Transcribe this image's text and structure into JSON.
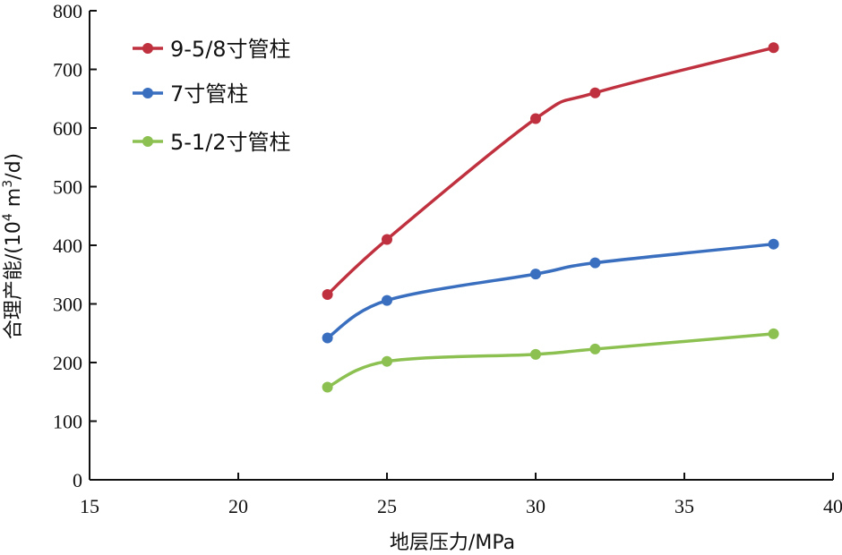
{
  "chart_data": {
    "type": "line",
    "xlabel": "地层压力/MPa",
    "ylabel_prefix": "合理产能/(10",
    "ylabel_sup1": "4",
    "ylabel_mid": " m",
    "ylabel_sup2": "3",
    "ylabel_suffix": "/d)",
    "xlim": [
      15,
      40
    ],
    "ylim": [
      0,
      800
    ],
    "x_ticks": [
      15,
      20,
      25,
      30,
      35,
      40
    ],
    "y_ticks": [
      0,
      100,
      200,
      300,
      400,
      500,
      600,
      700,
      800
    ],
    "grid": false,
    "legend_position": "top-left",
    "x": [
      23,
      25,
      30,
      32,
      38
    ],
    "series": [
      {
        "name": "9-5/8寸管柱",
        "color": "#c0313f",
        "values": [
          316,
          410,
          616,
          660,
          737
        ]
      },
      {
        "name": "7寸管柱",
        "color": "#3a6fbf",
        "values": [
          242,
          306,
          351,
          370,
          402
        ]
      },
      {
        "name": "5-1/2寸管柱",
        "color": "#8cc152",
        "values": [
          158,
          202,
          214,
          223,
          249
        ]
      }
    ]
  }
}
